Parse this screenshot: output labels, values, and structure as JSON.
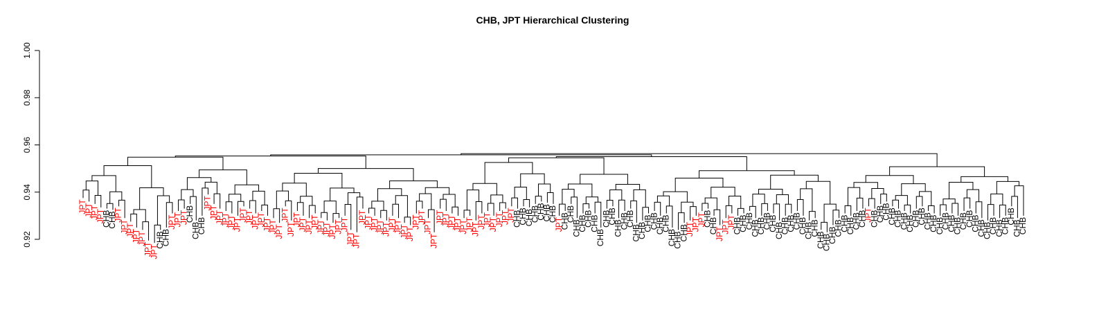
{
  "chart_data": {
    "type": "dendrogram",
    "title": "CHB, JPT Hierarchical Clustering",
    "xlabel": "",
    "ylabel": "",
    "ylim": [
      0.92,
      1.0
    ],
    "yticks": [
      "0.92",
      "0.94",
      "0.96",
      "0.98",
      "1.00"
    ],
    "root_height": 0.9555,
    "series": [
      {
        "name": "JPT",
        "color": "#ff0000"
      },
      {
        "name": "CHB",
        "color": "#000000"
      }
    ],
    "leaves": [
      {
        "label": "JPT",
        "height": 0.9375
      },
      {
        "label": "JPT",
        "height": 0.936
      },
      {
        "label": "JPT",
        "height": 0.935
      },
      {
        "label": "JPT",
        "height": 0.9335
      },
      {
        "label": "CHB",
        "height": 0.933
      },
      {
        "label": "CHB",
        "height": 0.9325
      },
      {
        "label": "JPT",
        "height": 0.934
      },
      {
        "label": "JPT",
        "height": 0.929
      },
      {
        "label": "JPT",
        "height": 0.9275
      },
      {
        "label": "JPT",
        "height": 0.925
      },
      {
        "label": "JPT",
        "height": 0.924
      },
      {
        "label": "JPT",
        "height": 0.9195
      },
      {
        "label": "JPT",
        "height": 0.9185
      },
      {
        "label": "CHB",
        "height": 0.924
      },
      {
        "label": "CHB",
        "height": 0.925
      },
      {
        "label": "JPT",
        "height": 0.931
      },
      {
        "label": "JPT",
        "height": 0.932
      },
      {
        "label": "JPT",
        "height": 0.933
      },
      {
        "label": "CHB",
        "height": 0.935
      },
      {
        "label": "CHB",
        "height": 0.928
      },
      {
        "label": "CHB",
        "height": 0.93
      },
      {
        "label": "JPT",
        "height": 0.939
      },
      {
        "label": "JPT",
        "height": 0.935
      },
      {
        "label": "JPT",
        "height": 0.933
      },
      {
        "label": "JPT",
        "height": 0.932
      },
      {
        "label": "JPT",
        "height": 0.931
      },
      {
        "label": "JPT",
        "height": 0.93
      },
      {
        "label": "JPT",
        "height": 0.934
      },
      {
        "label": "JPT",
        "height": 0.933
      },
      {
        "label": "JPT",
        "height": 0.931
      },
      {
        "label": "JPT",
        "height": 0.932
      },
      {
        "label": "JPT",
        "height": 0.93
      },
      {
        "label": "JPT",
        "height": 0.929
      },
      {
        "label": "JPT",
        "height": 0.927
      },
      {
        "label": "JPT",
        "height": 0.934
      },
      {
        "label": "JPT",
        "height": 0.928
      },
      {
        "label": "JPT",
        "height": 0.932
      },
      {
        "label": "JPT",
        "height": 0.93
      },
      {
        "label": "JPT",
        "height": 0.929
      },
      {
        "label": "JPT",
        "height": 0.931
      },
      {
        "label": "JPT",
        "height": 0.929
      },
      {
        "label": "JPT",
        "height": 0.928
      },
      {
        "label": "JPT",
        "height": 0.927
      },
      {
        "label": "JPT",
        "height": 0.929
      },
      {
        "label": "JPT",
        "height": 0.93
      },
      {
        "label": "JPT",
        "height": 0.924
      },
      {
        "label": "JPT",
        "height": 0.923
      },
      {
        "label": "JPT",
        "height": 0.933
      },
      {
        "label": "JPT",
        "height": 0.931
      },
      {
        "label": "JPT",
        "height": 0.93
      },
      {
        "label": "JPT",
        "height": 0.929
      },
      {
        "label": "JPT",
        "height": 0.928
      },
      {
        "label": "JPT",
        "height": 0.93
      },
      {
        "label": "JPT",
        "height": 0.929
      },
      {
        "label": "JPT",
        "height": 0.927
      },
      {
        "label": "JPT",
        "height": 0.926
      },
      {
        "label": "JPT",
        "height": 0.931
      },
      {
        "label": "JPT",
        "height": 0.933
      },
      {
        "label": "JPT",
        "height": 0.929
      },
      {
        "label": "JPT",
        "height": 0.923
      },
      {
        "label": "JPT",
        "height": 0.933
      },
      {
        "label": "JPT",
        "height": 0.932
      },
      {
        "label": "JPT",
        "height": 0.931
      },
      {
        "label": "JPT",
        "height": 0.93
      },
      {
        "label": "JPT",
        "height": 0.929
      },
      {
        "label": "JPT",
        "height": 0.93
      },
      {
        "label": "JPT",
        "height": 0.928
      },
      {
        "label": "JPT",
        "height": 0.931
      },
      {
        "label": "JPT",
        "height": 0.932
      },
      {
        "label": "JPT",
        "height": 0.93
      },
      {
        "label": "JPT",
        "height": 0.932
      },
      {
        "label": "JPT",
        "height": 0.933
      },
      {
        "label": "JPT",
        "height": 0.934
      },
      {
        "label": "CHB",
        "height": 0.933
      },
      {
        "label": "CHB",
        "height": 0.934
      },
      {
        "label": "CHB",
        "height": 0.9335
      },
      {
        "label": "CHB",
        "height": 0.935
      },
      {
        "label": "CHB",
        "height": 0.936
      },
      {
        "label": "CHB",
        "height": 0.9355
      },
      {
        "label": "CHB",
        "height": 0.935
      },
      {
        "label": "JPT",
        "height": 0.93
      },
      {
        "label": "CHB",
        "height": 0.932
      },
      {
        "label": "CHB",
        "height": 0.935
      },
      {
        "label": "CHB",
        "height": 0.929
      },
      {
        "label": "CHB",
        "height": 0.931
      },
      {
        "label": "CHB",
        "height": 0.933
      },
      {
        "label": "CHB",
        "height": 0.931
      },
      {
        "label": "CHB",
        "height": 0.925
      },
      {
        "label": "CHB",
        "height": 0.933
      },
      {
        "label": "CHB",
        "height": 0.934
      },
      {
        "label": "CHB",
        "height": 0.929
      },
      {
        "label": "CHB",
        "height": 0.932
      },
      {
        "label": "CHB",
        "height": 0.933
      },
      {
        "label": "CHB",
        "height": 0.927
      },
      {
        "label": "CHB",
        "height": 0.928
      },
      {
        "label": "CHB",
        "height": 0.931
      },
      {
        "label": "CHB",
        "height": 0.932
      },
      {
        "label": "CHB",
        "height": 0.93
      },
      {
        "label": "CHB",
        "height": 0.931
      },
      {
        "label": "CHB",
        "height": 0.925
      },
      {
        "label": "CHB",
        "height": 0.924
      },
      {
        "label": "CHB",
        "height": 0.927
      },
      {
        "label": "JPT",
        "height": 0.928
      },
      {
        "label": "JPT",
        "height": 0.93
      },
      {
        "label": "JPT",
        "height": 0.932
      },
      {
        "label": "CHB",
        "height": 0.933
      },
      {
        "label": "CHB",
        "height": 0.93
      },
      {
        "label": "JPT",
        "height": 0.926
      },
      {
        "label": "JPT",
        "height": 0.929
      },
      {
        "label": "JPT",
        "height": 0.931
      },
      {
        "label": "CHB",
        "height": 0.93
      },
      {
        "label": "CHB",
        "height": 0.931
      },
      {
        "label": "CHB",
        "height": 0.932
      },
      {
        "label": "CHB",
        "height": 0.929
      },
      {
        "label": "CHB",
        "height": 0.93
      },
      {
        "label": "CHB",
        "height": 0.932
      },
      {
        "label": "CHB",
        "height": 0.931
      },
      {
        "label": "CHB",
        "height": 0.928
      },
      {
        "label": "CHB",
        "height": 0.93
      },
      {
        "label": "CHB",
        "height": 0.931
      },
      {
        "label": "CHB",
        "height": 0.932
      },
      {
        "label": "CHB",
        "height": 0.93
      },
      {
        "label": "CHB",
        "height": 0.928
      },
      {
        "label": "CHB",
        "height": 0.929
      },
      {
        "label": "CHB",
        "height": 0.924
      },
      {
        "label": "CHB",
        "height": 0.923
      },
      {
        "label": "CHB",
        "height": 0.926
      },
      {
        "label": "CHB",
        "height": 0.929
      },
      {
        "label": "CHB",
        "height": 0.931
      },
      {
        "label": "CHB",
        "height": 0.93
      },
      {
        "label": "CHB",
        "height": 0.932
      },
      {
        "label": "CHB",
        "height": 0.933
      },
      {
        "label": "JPT",
        "height": 0.934
      },
      {
        "label": "CHB",
        "height": 0.933
      },
      {
        "label": "CHB",
        "height": 0.935
      },
      {
        "label": "CHB",
        "height": 0.936
      },
      {
        "label": "CHB",
        "height": 0.934
      },
      {
        "label": "CHB",
        "height": 0.933
      },
      {
        "label": "CHB",
        "height": 0.932
      },
      {
        "label": "CHB",
        "height": 0.931
      },
      {
        "label": "CHB",
        "height": 0.933
      },
      {
        "label": "CHB",
        "height": 0.934
      },
      {
        "label": "CHB",
        "height": 0.932
      },
      {
        "label": "CHB",
        "height": 0.931
      },
      {
        "label": "CHB",
        "height": 0.93
      },
      {
        "label": "CHB",
        "height": 0.932
      },
      {
        "label": "CHB",
        "height": 0.931
      },
      {
        "label": "CHB",
        "height": 0.93
      },
      {
        "label": "CHB",
        "height": 0.932
      },
      {
        "label": "CHB",
        "height": 0.933
      },
      {
        "label": "CHB",
        "height": 0.931
      },
      {
        "label": "CHB",
        "height": 0.929
      },
      {
        "label": "CHB",
        "height": 0.928
      },
      {
        "label": "CHB",
        "height": 0.93
      },
      {
        "label": "CHB",
        "height": 0.929
      },
      {
        "label": "CHB",
        "height": 0.93
      },
      {
        "label": "CHB",
        "height": 0.934
      },
      {
        "label": "CHB",
        "height": 0.929
      },
      {
        "label": "CHB",
        "height": 0.93
      }
    ]
  }
}
